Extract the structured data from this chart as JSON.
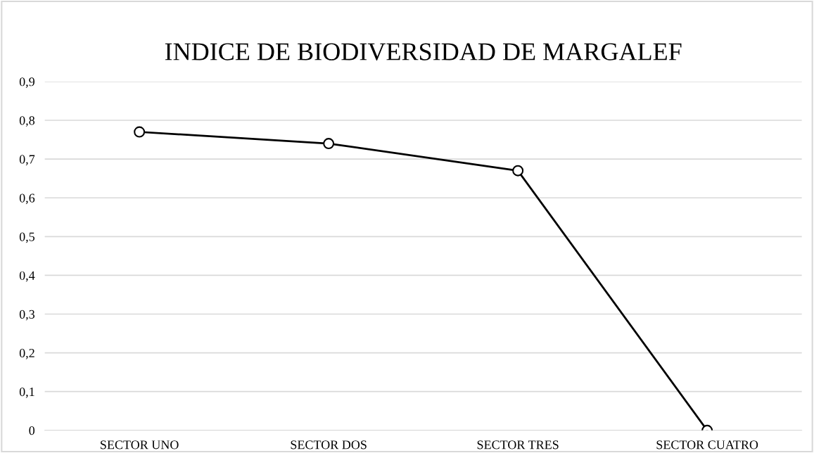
{
  "chart_data": {
    "type": "line",
    "title": "INDICE DE BIODIVERSIDAD DE MARGALEF",
    "categories": [
      "SECTOR UNO",
      "SECTOR DOS",
      "SECTOR TRES",
      "SECTOR CUATRO"
    ],
    "series": [
      {
        "color": "#000000",
        "values": [
          0.77,
          0.74,
          0.67,
          0
        ]
      }
    ],
    "ylim": [
      0,
      0.9
    ],
    "yticks": [
      {
        "value": 0,
        "label": "0"
      },
      {
        "value": 0.1,
        "label": "0,1"
      },
      {
        "value": 0.2,
        "label": "0,2"
      },
      {
        "value": 0.3,
        "label": "0,3"
      },
      {
        "value": 0.4,
        "label": "0,4"
      },
      {
        "value": 0.5,
        "label": "0,5"
      },
      {
        "value": 0.6,
        "label": "0,6"
      },
      {
        "value": 0.7,
        "label": "0,7"
      },
      {
        "value": 0.8,
        "label": "0,8"
      },
      {
        "value": 0.9,
        "label": "0,9"
      }
    ],
    "grid": "y",
    "marker": "circle",
    "line_style": "solid",
    "legend": false
  }
}
